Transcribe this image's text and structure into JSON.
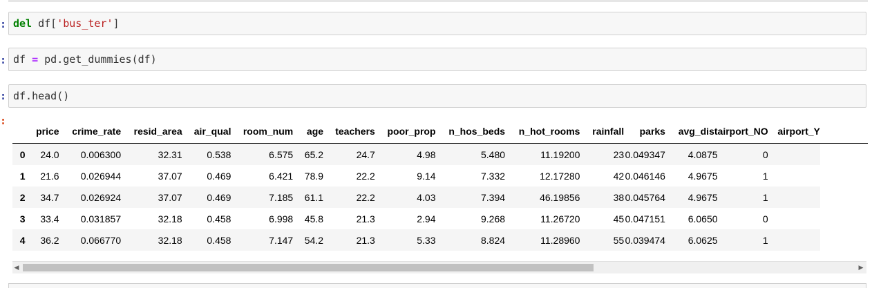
{
  "cells": [
    {
      "prompt": ":",
      "tokens": [
        {
          "t": "del",
          "c": "kw"
        },
        {
          "t": " df[",
          "c": ""
        },
        {
          "t": "'bus_ter'",
          "c": "str"
        },
        {
          "t": "]",
          "c": ""
        }
      ]
    },
    {
      "prompt": ":",
      "tokens": [
        {
          "t": "df ",
          "c": ""
        },
        {
          "t": "=",
          "c": "op"
        },
        {
          "t": " pd.get_dummies(df)",
          "c": ""
        }
      ]
    },
    {
      "prompt": ":",
      "tokens": [
        {
          "t": "df.head()",
          "c": ""
        }
      ]
    }
  ],
  "output_prompt": ":",
  "table": {
    "columns": [
      "price",
      "crime_rate",
      "resid_area",
      "air_qual",
      "room_num",
      "age",
      "teachers",
      "poor_prop",
      "n_hos_beds",
      "n_hot_rooms",
      "rainfall",
      "parks",
      "avg_dist",
      "airport_NO",
      "airport_Y"
    ],
    "rows": [
      {
        "index": "0",
        "values": [
          "24.0",
          "0.006300",
          "32.31",
          "0.538",
          "6.575",
          "65.2",
          "24.7",
          "4.98",
          "5.480",
          "11.19200",
          "23",
          "0.049347",
          "4.0875",
          "0",
          ""
        ]
      },
      {
        "index": "1",
        "values": [
          "21.6",
          "0.026944",
          "37.07",
          "0.469",
          "6.421",
          "78.9",
          "22.2",
          "9.14",
          "7.332",
          "12.17280",
          "42",
          "0.046146",
          "4.9675",
          "1",
          ""
        ]
      },
      {
        "index": "2",
        "values": [
          "34.7",
          "0.026924",
          "37.07",
          "0.469",
          "7.185",
          "61.1",
          "22.2",
          "4.03",
          "7.394",
          "46.19856",
          "38",
          "0.045764",
          "4.9675",
          "1",
          ""
        ]
      },
      {
        "index": "3",
        "values": [
          "33.4",
          "0.031857",
          "32.18",
          "0.458",
          "6.998",
          "45.8",
          "21.3",
          "2.94",
          "9.268",
          "11.26720",
          "45",
          "0.047151",
          "6.0650",
          "0",
          ""
        ]
      },
      {
        "index": "4",
        "values": [
          "36.2",
          "0.066770",
          "32.18",
          "0.458",
          "7.147",
          "54.2",
          "21.3",
          "5.33",
          "8.824",
          "11.28960",
          "55",
          "0.039474",
          "6.0625",
          "1",
          ""
        ]
      }
    ]
  },
  "scrollbar": {
    "left_arrow": "◀",
    "right_arrow": "▶",
    "left_icon": "scroll-left-icon",
    "right_icon": "scroll-right-icon"
  }
}
